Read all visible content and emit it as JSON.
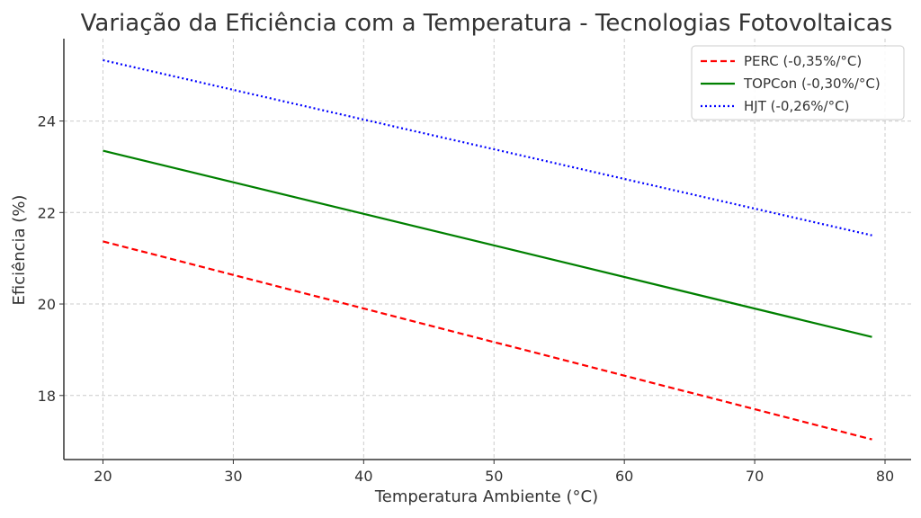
{
  "chart_data": {
    "type": "line",
    "title": "Variação da Eficiência com a Temperatura - Tecnologias Fotovoltaicas",
    "xlabel": "Temperatura Ambiente (°C)",
    "ylabel": "Eficiência (%)",
    "xlim": [
      17,
      82
    ],
    "ylim": [
      16.6,
      25.8
    ],
    "x_ticks": [
      20,
      30,
      40,
      50,
      60,
      70,
      80
    ],
    "y_ticks": [
      18,
      20,
      22,
      24
    ],
    "grid": true,
    "legend_position": "top-right",
    "x": [
      20,
      79
    ],
    "series": [
      {
        "name": "PERC (-0,35%/°C)",
        "values": [
          21.37,
          17.04
        ],
        "color": "#ff0000",
        "style": "dashed"
      },
      {
        "name": "TOPCon (-0,30%/°C)",
        "values": [
          23.35,
          19.28
        ],
        "color": "#008000",
        "style": "solid"
      },
      {
        "name": "HJT (-0,26%/°C)",
        "values": [
          25.33,
          21.5
        ],
        "color": "#0000ff",
        "style": "dotted"
      }
    ]
  }
}
